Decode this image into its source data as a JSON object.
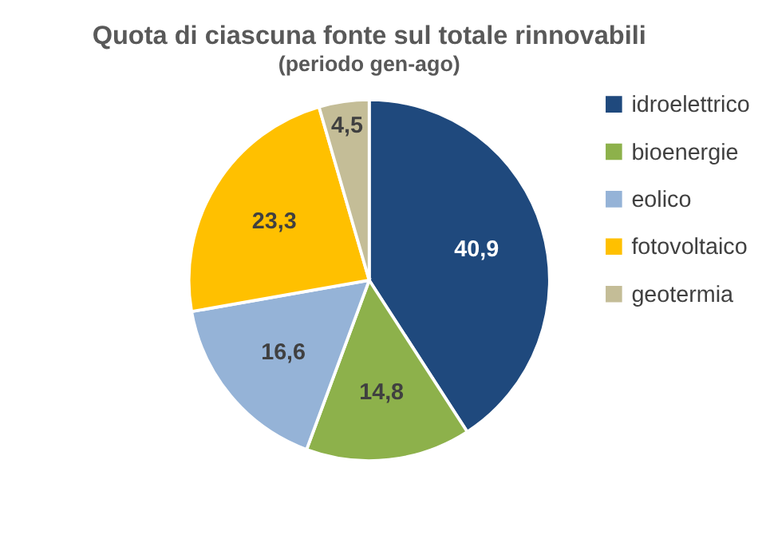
{
  "chart_data": {
    "type": "pie",
    "title": "Quota di ciascuna fonte sul totale rinnovabili",
    "subtitle": "(periodo gen-ago)",
    "categories": [
      "idroelettrico",
      "bioenergie",
      "eolico",
      "fotovoltaico",
      "geotermia"
    ],
    "values": [
      40.9,
      14.8,
      16.6,
      23.3,
      4.5
    ],
    "value_labels": [
      "40,9",
      "14,8",
      "16,6",
      "23,3",
      "4,5"
    ],
    "colors": [
      "#1f497d",
      "#8db14b",
      "#95b3d7",
      "#ffc000",
      "#c4bd97"
    ],
    "legend": "right"
  }
}
